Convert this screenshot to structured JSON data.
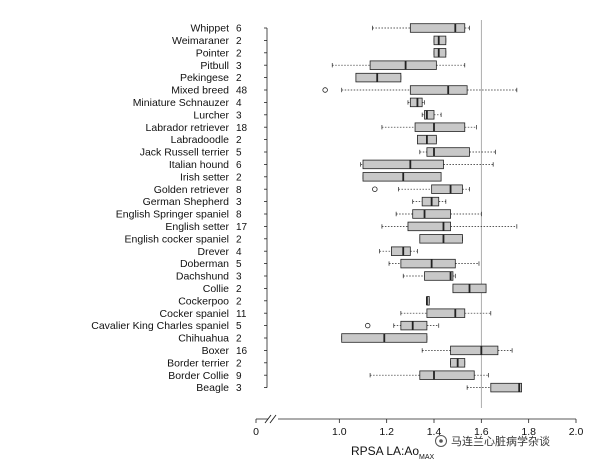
{
  "chart_data": {
    "type": "boxplot",
    "orientation": "horizontal",
    "title": "",
    "xlabel": "RPSA LA:Ao",
    "xlabel_subscript": "MAX",
    "xlim": [
      0.8,
      2.0
    ],
    "axis_break": true,
    "x_ticks": [
      "0",
      "1.0",
      "1.2",
      "1.4",
      "1.6",
      "1.8",
      "2.0"
    ],
    "reference_line": 1.6,
    "grid": false,
    "categories": [
      {
        "name": "Whippet",
        "n": "6",
        "whisker_low": 1.14,
        "q1": 1.3,
        "median": 1.49,
        "q3": 1.53,
        "whisker_high": 1.55,
        "outliers": []
      },
      {
        "name": "Weimaraner",
        "n": "2",
        "whisker_low": 1.4,
        "q1": 1.4,
        "median": 1.42,
        "q3": 1.45,
        "whisker_high": 1.45,
        "outliers": []
      },
      {
        "name": "Pointer",
        "n": "2",
        "whisker_low": 1.4,
        "q1": 1.4,
        "median": 1.42,
        "q3": 1.45,
        "whisker_high": 1.45,
        "outliers": []
      },
      {
        "name": "Pitbull",
        "n": "3",
        "whisker_low": 0.97,
        "q1": 1.13,
        "median": 1.28,
        "q3": 1.41,
        "whisker_high": 1.53,
        "outliers": []
      },
      {
        "name": "Pekingese",
        "n": "2",
        "whisker_low": 1.07,
        "q1": 1.07,
        "median": 1.16,
        "q3": 1.26,
        "whisker_high": 1.26,
        "outliers": []
      },
      {
        "name": "Mixed breed",
        "n": "48",
        "whisker_low": 1.01,
        "q1": 1.3,
        "median": 1.46,
        "q3": 1.54,
        "whisker_high": 1.75,
        "outliers": [
          0.94
        ]
      },
      {
        "name": "Miniature Schnauzer",
        "n": "4",
        "whisker_low": 1.29,
        "q1": 1.3,
        "median": 1.33,
        "q3": 1.35,
        "whisker_high": 1.36,
        "outliers": []
      },
      {
        "name": "Lurcher",
        "n": "3",
        "whisker_low": 1.35,
        "q1": 1.36,
        "median": 1.37,
        "q3": 1.4,
        "whisker_high": 1.43,
        "outliers": []
      },
      {
        "name": "Labrador retriever",
        "n": "18",
        "whisker_low": 1.18,
        "q1": 1.32,
        "median": 1.4,
        "q3": 1.53,
        "whisker_high": 1.58,
        "outliers": []
      },
      {
        "name": "Labradoodle",
        "n": "2",
        "whisker_low": 1.33,
        "q1": 1.33,
        "median": 1.37,
        "q3": 1.41,
        "whisker_high": 1.41,
        "outliers": []
      },
      {
        "name": "Jack Russell terrier",
        "n": "5",
        "whisker_low": 1.34,
        "q1": 1.37,
        "median": 1.4,
        "q3": 1.55,
        "whisker_high": 1.66,
        "outliers": []
      },
      {
        "name": "Italian hound",
        "n": "6",
        "whisker_low": 1.09,
        "q1": 1.1,
        "median": 1.3,
        "q3": 1.44,
        "whisker_high": 1.65,
        "outliers": []
      },
      {
        "name": "Irish setter",
        "n": "2",
        "whisker_low": 1.1,
        "q1": 1.1,
        "median": 1.27,
        "q3": 1.43,
        "whisker_high": 1.43,
        "outliers": []
      },
      {
        "name": "Golden retriever",
        "n": "8",
        "whisker_low": 1.25,
        "q1": 1.39,
        "median": 1.47,
        "q3": 1.52,
        "whisker_high": 1.55,
        "outliers": [
          1.15
        ]
      },
      {
        "name": "German Shepherd",
        "n": "3",
        "whisker_low": 1.31,
        "q1": 1.35,
        "median": 1.39,
        "q3": 1.42,
        "whisker_high": 1.45,
        "outliers": []
      },
      {
        "name": "English Springer spaniel",
        "n": "8",
        "whisker_low": 1.24,
        "q1": 1.31,
        "median": 1.36,
        "q3": 1.47,
        "whisker_high": 1.6,
        "outliers": []
      },
      {
        "name": "English setter",
        "n": "17",
        "whisker_low": 1.18,
        "q1": 1.29,
        "median": 1.44,
        "q3": 1.47,
        "whisker_high": 1.75,
        "outliers": []
      },
      {
        "name": "English cocker spaniel",
        "n": "2",
        "whisker_low": 1.34,
        "q1": 1.34,
        "median": 1.44,
        "q3": 1.52,
        "whisker_high": 1.52,
        "outliers": []
      },
      {
        "name": "Drever",
        "n": "4",
        "whisker_low": 1.17,
        "q1": 1.22,
        "median": 1.27,
        "q3": 1.3,
        "whisker_high": 1.33,
        "outliers": []
      },
      {
        "name": "Doberman",
        "n": "5",
        "whisker_low": 1.21,
        "q1": 1.26,
        "median": 1.39,
        "q3": 1.49,
        "whisker_high": 1.59,
        "outliers": []
      },
      {
        "name": "Dachshund",
        "n": "3",
        "whisker_low": 1.27,
        "q1": 1.36,
        "median": 1.47,
        "q3": 1.48,
        "whisker_high": 1.49,
        "outliers": []
      },
      {
        "name": "Collie",
        "n": "2",
        "whisker_low": 1.48,
        "q1": 1.48,
        "median": 1.55,
        "q3": 1.62,
        "whisker_high": 1.62,
        "outliers": []
      },
      {
        "name": "Cockerpoo",
        "n": "2",
        "whisker_low": 1.37,
        "q1": 1.37,
        "median": 1.37,
        "q3": 1.38,
        "whisker_high": 1.38,
        "outliers": []
      },
      {
        "name": "Cocker spaniel",
        "n": "11",
        "whisker_low": 1.26,
        "q1": 1.37,
        "median": 1.49,
        "q3": 1.53,
        "whisker_high": 1.64,
        "outliers": []
      },
      {
        "name": "Cavalier King Charles spaniel",
        "n": "5",
        "whisker_low": 1.23,
        "q1": 1.26,
        "median": 1.31,
        "q3": 1.37,
        "whisker_high": 1.42,
        "outliers": [
          1.12
        ]
      },
      {
        "name": "Chihuahua",
        "n": "2",
        "whisker_low": 1.01,
        "q1": 1.01,
        "median": 1.19,
        "q3": 1.37,
        "whisker_high": 1.37,
        "outliers": []
      },
      {
        "name": "Boxer",
        "n": "16",
        "whisker_low": 1.35,
        "q1": 1.47,
        "median": 1.6,
        "q3": 1.67,
        "whisker_high": 1.73,
        "outliers": []
      },
      {
        "name": "Border terrier",
        "n": "2",
        "whisker_low": 1.47,
        "q1": 1.47,
        "median": 1.5,
        "q3": 1.53,
        "whisker_high": 1.53,
        "outliers": []
      },
      {
        "name": "Border Collie",
        "n": "9",
        "whisker_low": 1.13,
        "q1": 1.34,
        "median": 1.4,
        "q3": 1.57,
        "whisker_high": 1.63,
        "outliers": []
      },
      {
        "name": "Beagle",
        "n": "3",
        "whisker_low": 1.54,
        "q1": 1.64,
        "median": 1.76,
        "q3": 1.77,
        "whisker_high": 1.77,
        "outliers": []
      }
    ]
  },
  "watermark": {
    "text": "马连兰心脏病学杂谈"
  },
  "colors": {
    "box_fill": "#c8c8c8",
    "stroke": "#222222",
    "ref_line": "#999999"
  }
}
